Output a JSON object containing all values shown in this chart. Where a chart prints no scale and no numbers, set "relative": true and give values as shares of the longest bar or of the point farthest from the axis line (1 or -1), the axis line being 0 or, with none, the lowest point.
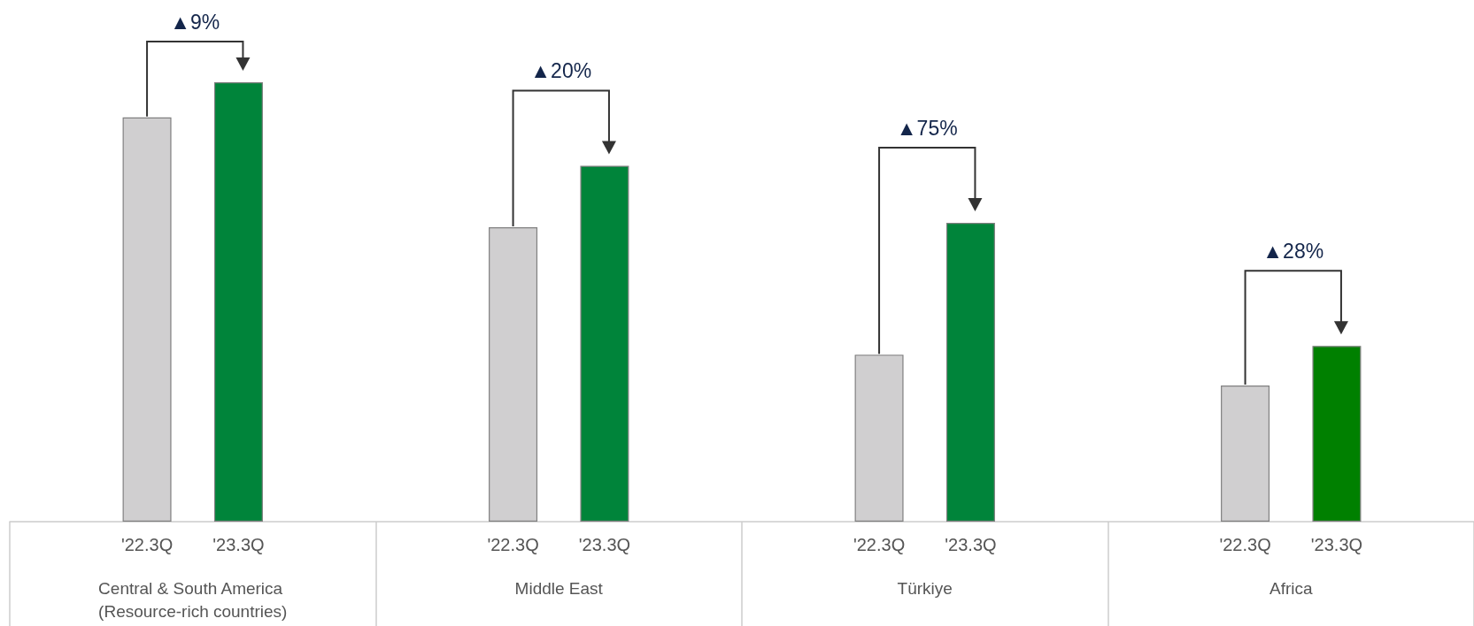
{
  "chart_data": {
    "type": "bar",
    "relative": true,
    "categories": [
      "'22.3Q",
      "'23.3Q",
      "'22.3Q",
      "'23.3Q",
      "'22.3Q",
      "'23.3Q",
      "'22.3Q",
      "'23.3Q"
    ],
    "values": [
      0.92,
      1,
      0.67,
      0.81,
      0.38,
      0.68,
      0.31,
      0.4
    ],
    "colors": [
      "#d0cfd0",
      "#00843a",
      "#d0cfd0",
      "#00843a",
      "#d0cfd0",
      "#00843a",
      "#d0cfd0",
      "#008000"
    ],
    "annotations": [
      "Central & South America (Resource-rich countries)",
      "Middle East",
      "Türkiye",
      "Africa",
      "▲9%",
      "▲20%",
      "▲75%",
      "▲28%"
    ],
    "data_labels": false
  }
}
